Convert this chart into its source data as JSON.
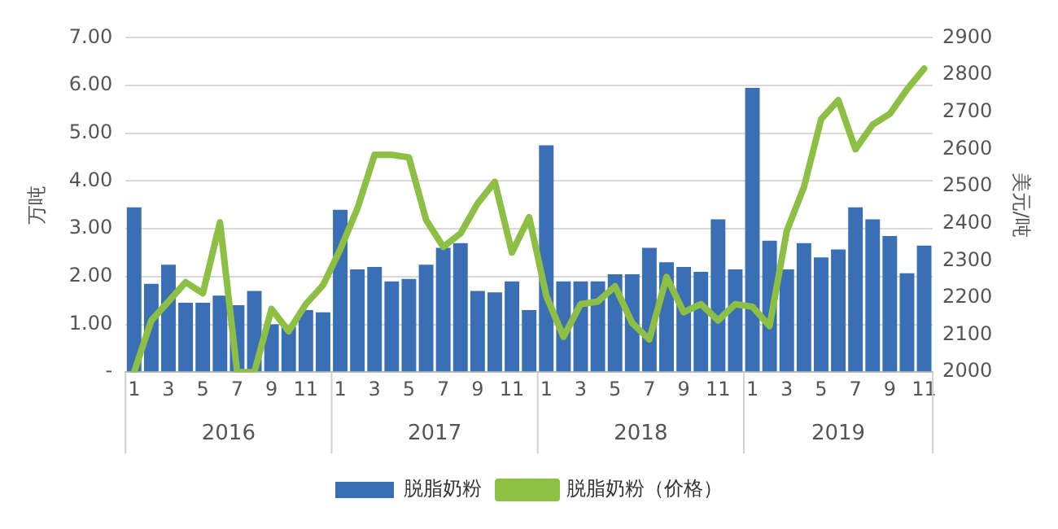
{
  "chart_data": {
    "type": "bar",
    "ylabel": "万吨",
    "y2label": "美元/吨",
    "categories": [
      "1",
      null,
      "3",
      null,
      "5",
      null,
      "7",
      null,
      "9",
      null,
      "11",
      null,
      "1",
      null,
      "3",
      null,
      "5",
      null,
      "7",
      null,
      "9",
      null,
      "11",
      null,
      "1",
      null,
      "3",
      null,
      "5",
      null,
      "7",
      null,
      "9",
      null,
      "11",
      null,
      "1",
      null,
      "3",
      null,
      "5",
      null,
      "7",
      null,
      "9",
      null,
      "11"
    ],
    "series": [
      {
        "name": "脱脂奶粉",
        "color": "#3a6fb5",
        "values": [
          3.45,
          1.85,
          2.25,
          1.45,
          1.45,
          1.6,
          1.4,
          1.7,
          1.0,
          0.95,
          1.3,
          1.25,
          3.4,
          2.15,
          2.2,
          1.9,
          1.95,
          2.25,
          2.6,
          2.7,
          1.7,
          1.67,
          1.9,
          1.3,
          4.75,
          1.9,
          1.9,
          1.9,
          2.05,
          2.05,
          2.6,
          2.3,
          2.2,
          2.1,
          3.2,
          2.15,
          5.95,
          2.75,
          2.15,
          2.7,
          2.4,
          2.57,
          3.45,
          3.2,
          2.85,
          2.07,
          2.65
        ]
      },
      {
        "name": "脱脂奶粉（价格）",
        "type": "line",
        "axis": "y2",
        "color": "#8dbf44",
        "values": [
          2000,
          2139,
          2190,
          2242,
          2212,
          2403,
          2000,
          2000,
          2170,
          2110,
          2183,
          2234,
          2330,
          2440,
          2585,
          2585,
          2578,
          2410,
          2337,
          2373,
          2454,
          2512,
          2322,
          2417,
          2205,
          2095,
          2183,
          2190,
          2231,
          2132,
          2088,
          2256,
          2161,
          2183,
          2139,
          2183,
          2176,
          2124,
          2380,
          2498,
          2681,
          2732,
          2600,
          2666,
          2695,
          2761,
          2817
        ]
      }
    ],
    "ylim": [
      0,
      7
    ],
    "yticks": [
      {
        "value": 0,
        "label": "-"
      },
      {
        "value": 1,
        "label": "1.00"
      },
      {
        "value": 2,
        "label": "2.00"
      },
      {
        "value": 3,
        "label": "3.00"
      },
      {
        "value": 4,
        "label": "4.00"
      },
      {
        "value": 5,
        "label": "5.00"
      },
      {
        "value": 6,
        "label": "6.00"
      },
      {
        "value": 7,
        "label": "7.00"
      }
    ],
    "y2lim": [
      2000,
      2900
    ],
    "y2ticks": [
      2000,
      2100,
      2200,
      2300,
      2400,
      2500,
      2600,
      2700,
      2800,
      2900
    ],
    "annotations": [
      "2016",
      "2017",
      "2018",
      "2019"
    ],
    "grid": "y",
    "legend": "bottom",
    "marker": "none",
    "line_style": "solid"
  }
}
